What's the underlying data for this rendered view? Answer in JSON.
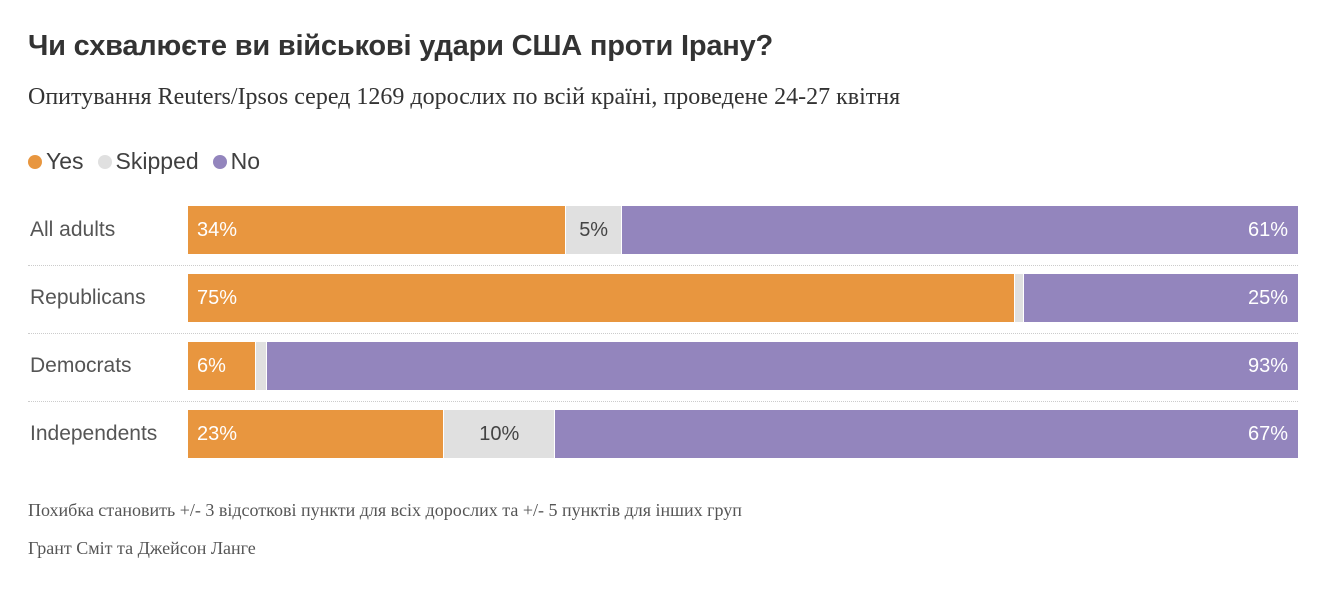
{
  "chart_data": {
    "type": "bar",
    "orientation": "horizontal",
    "stacked": true,
    "title": "Чи схвалюєте ви військові удари США проти Ірану?",
    "subtitle": "Опитування Reuters/Ipsos серед 1269 дорослих по всій країні, проведене 24-27 квітня",
    "legend_position": "top-left",
    "categories": [
      "All adults",
      "Republicans",
      "Democrats",
      "Independents"
    ],
    "series": [
      {
        "name": "Yes",
        "color": "#E8963F",
        "values": [
          34,
          75,
          6,
          23
        ],
        "labels": [
          "34%",
          "75%",
          "6%",
          "23%"
        ]
      },
      {
        "name": "Skipped",
        "color": "#E0E0E0",
        "values": [
          5,
          null,
          null,
          10
        ],
        "labels": [
          "5%",
          "",
          "",
          "10%"
        ]
      },
      {
        "name": "No",
        "color": "#9385BD",
        "values": [
          61,
          25,
          93,
          67
        ],
        "labels": [
          "61%",
          "25%",
          "93%",
          "67%"
        ]
      }
    ],
    "xlim": [
      0,
      100
    ],
    "grid": false
  },
  "footer": {
    "note": "Похибка становить +/- 3 відсоткові пункти для всіх дорослих та +/- 5 пунктів для інших груп",
    "credit": "Грант Сміт та Джейсон Ланге"
  }
}
